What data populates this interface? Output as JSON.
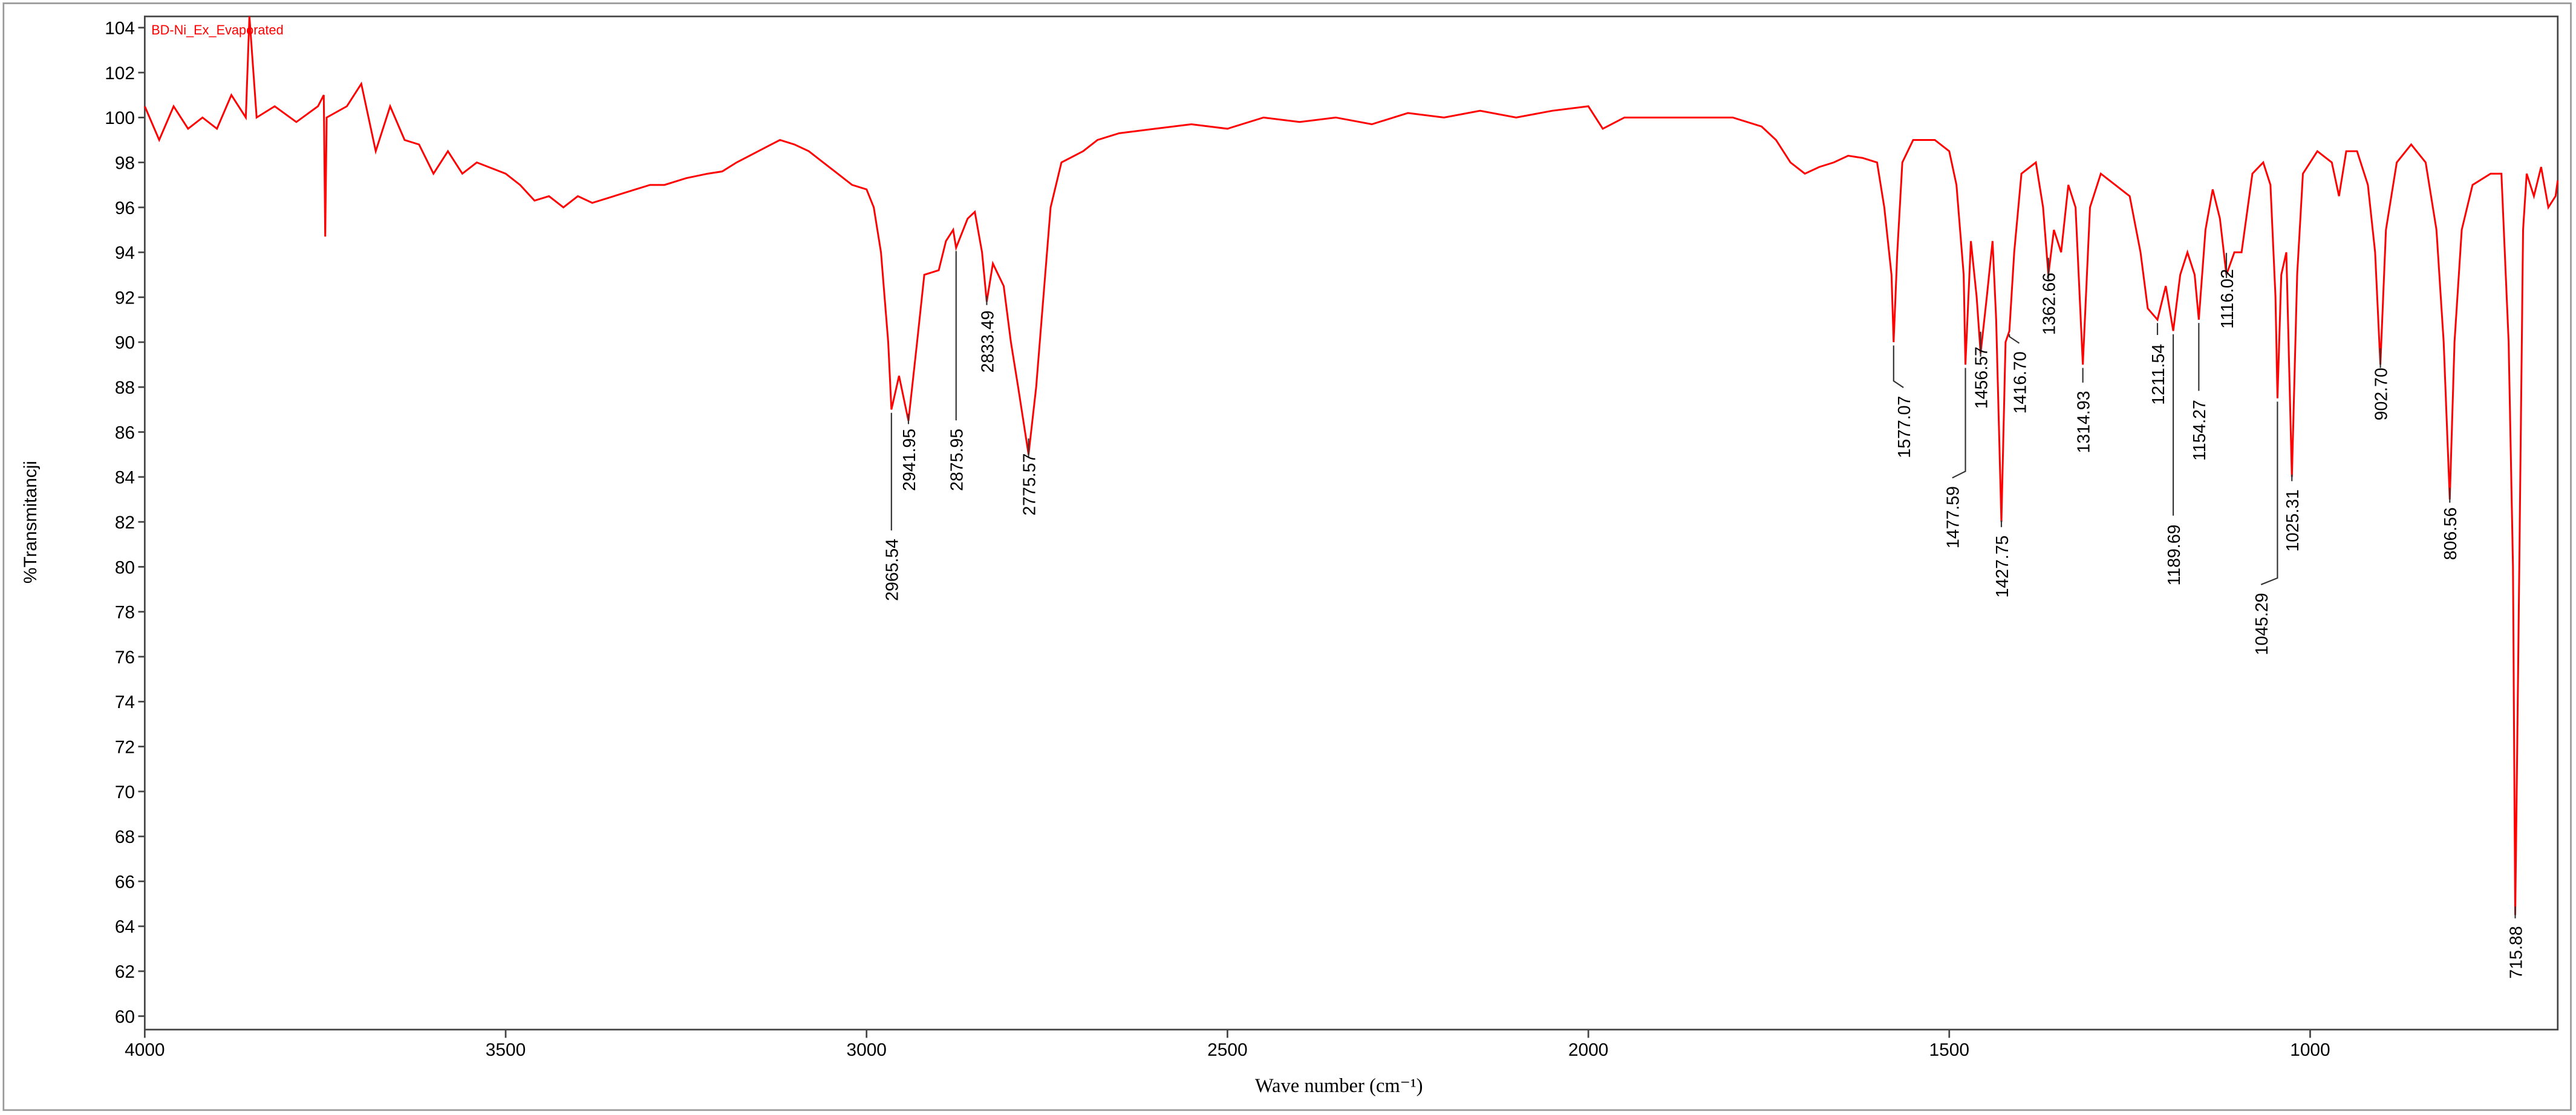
{
  "chart_data": {
    "type": "line",
    "x_label": "Wave number (cm⁻¹)",
    "y_label": "%Transmitancji",
    "xlim": [
      4000,
      657
    ],
    "ylim": [
      59.4,
      104.5
    ],
    "xticks": [
      4000,
      3500,
      3000,
      2500,
      2000,
      1500,
      1000
    ],
    "yticks": [
      60,
      62,
      64,
      66,
      68,
      70,
      72,
      74,
      76,
      78,
      80,
      82,
      84,
      86,
      88,
      90,
      92,
      94,
      96,
      98,
      100,
      102,
      104
    ],
    "x": [
      4000,
      3980,
      3960,
      3940,
      3920,
      3900,
      3880,
      3860,
      3855,
      3845,
      3820,
      3790,
      3760,
      3752,
      3750,
      3748,
      3720,
      3700,
      3680,
      3660,
      3640,
      3620,
      3600,
      3580,
      3560,
      3540,
      3500,
      3480,
      3460,
      3440,
      3420,
      3400,
      3380,
      3350,
      3320,
      3300,
      3280,
      3250,
      3220,
      3200,
      3180,
      3150,
      3120,
      3100,
      3080,
      3060,
      3040,
      3020,
      3000,
      2990,
      2980,
      2970,
      2965.54,
      2955,
      2941.95,
      2930,
      2920,
      2900,
      2890,
      2880,
      2875.95,
      2860,
      2850,
      2840,
      2833.49,
      2825,
      2810,
      2800,
      2790,
      2775.57,
      2765,
      2755,
      2745,
      2730,
      2700,
      2680,
      2650,
      2600,
      2550,
      2500,
      2450,
      2400,
      2350,
      2300,
      2250,
      2200,
      2150,
      2100,
      2050,
      2000,
      1980,
      1950,
      1900,
      1850,
      1800,
      1760,
      1740,
      1720,
      1700,
      1680,
      1660,
      1640,
      1620,
      1600,
      1590,
      1580,
      1577.07,
      1572,
      1565,
      1550,
      1520,
      1500,
      1490,
      1480,
      1477.59,
      1470,
      1462,
      1456.57,
      1448,
      1440,
      1435,
      1427.75,
      1422,
      1416.7,
      1410,
      1400,
      1380,
      1370,
      1362.66,
      1355,
      1345,
      1335,
      1325,
      1314.93,
      1305,
      1290,
      1270,
      1250,
      1235,
      1225,
      1211.54,
      1200,
      1189.69,
      1180,
      1170,
      1160,
      1154.27,
      1145,
      1135,
      1125,
      1116.02,
      1105,
      1095,
      1080,
      1065,
      1055,
      1048,
      1045.29,
      1040,
      1033,
      1025.31,
      1018,
      1010,
      990,
      970,
      960,
      950,
      935,
      920,
      910,
      902.7,
      895,
      880,
      860,
      840,
      825,
      815,
      806.56,
      800,
      790,
      775,
      750,
      735,
      725,
      719,
      715.88,
      712,
      705,
      700,
      690,
      680,
      670,
      660,
      657
    ],
    "series": [
      {
        "name": "BD-Ni_Ex_Evaporated",
        "color": "#ff0000",
        "values": [
          100.5,
          99,
          100.5,
          99.5,
          100,
          99.5,
          101,
          100,
          104.5,
          100,
          100.5,
          99.8,
          100.5,
          101,
          94.7,
          100,
          100.5,
          101.5,
          98.5,
          100.5,
          99,
          98.8,
          97.5,
          98.5,
          97.5,
          98,
          97.5,
          97,
          96.3,
          96.5,
          96,
          96.5,
          96.2,
          96.5,
          96.8,
          97,
          97,
          97.3,
          97.5,
          97.6,
          98,
          98.5,
          99,
          98.8,
          98.5,
          98,
          97.5,
          97,
          96.8,
          96,
          94,
          90,
          87,
          88.5,
          86.5,
          90,
          93,
          93.2,
          94.5,
          95,
          94.2,
          95.5,
          95.8,
          94,
          91.8,
          93.5,
          92.5,
          90,
          88,
          85,
          88,
          92,
          96,
          98,
          98.5,
          99,
          99.3,
          99.5,
          99.7,
          99.5,
          100,
          99.8,
          100,
          99.7,
          100.2,
          100,
          100.3,
          100,
          100.3,
          100.5,
          99.5,
          100,
          100,
          100,
          100,
          99.6,
          99,
          98,
          97.5,
          97.8,
          98,
          98.3,
          98.2,
          98,
          96,
          93,
          90,
          94,
          98,
          99,
          99,
          98.5,
          97,
          93,
          89,
          94.5,
          92,
          89.5,
          92,
          94.5,
          91,
          82,
          90,
          90.5,
          94,
          97.5,
          98,
          96,
          93,
          95,
          94,
          97,
          96,
          89,
          96,
          97.5,
          97,
          96.5,
          94,
          91.5,
          91,
          92.5,
          90.5,
          93,
          94,
          93,
          91,
          95,
          96.8,
          95.5,
          93,
          94,
          94,
          97.5,
          98,
          97,
          92,
          87.5,
          93,
          94,
          84,
          93,
          97.5,
          98.5,
          98,
          96.5,
          98.5,
          98.5,
          97,
          94,
          89,
          95,
          98,
          98.8,
          98,
          95,
          90,
          83,
          90,
          95,
          97,
          97.5,
          97.5,
          90,
          80,
          64.5,
          75,
          95,
          97.5,
          96.5,
          97.8,
          96,
          96.5,
          97.2
        ]
      }
    ],
    "peak_labels": [
      2965.54,
      2941.95,
      2875.95,
      2833.49,
      2775.57,
      1577.07,
      1477.59,
      1456.57,
      1427.75,
      {
        "value": 1416.7,
        "label": "1416.70"
      },
      1362.66,
      1314.93,
      1211.54,
      1189.69,
      1154.27,
      1116.02,
      1045.29,
      1025.31,
      {
        "value": 902.7,
        "label": "902.70"
      },
      806.56,
      715.88
    ]
  }
}
